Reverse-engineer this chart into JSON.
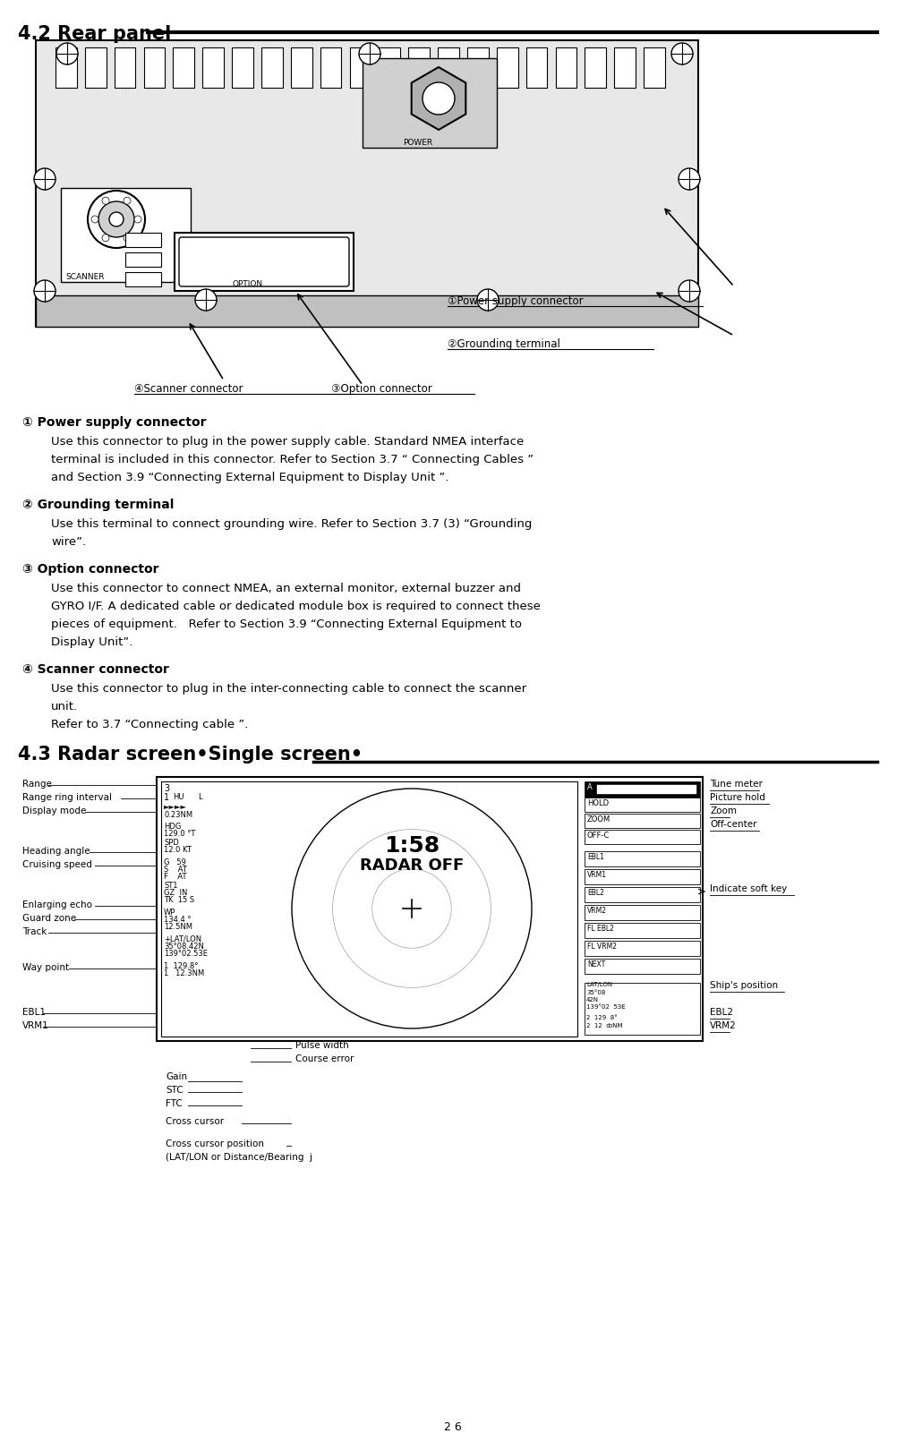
{
  "title1": "4.2 Rear panel",
  "title2": "4.3 Radar screen•Single screen•",
  "section1_items": [
    {
      "symbol": "①",
      "header": "Power supply connector",
      "body": "Use this connector to plug in the power supply cable. Standard NMEA interface\nterminal is included in this connector. Refer to Section 3.7 “ Connecting Cables ”\nand Section 3.9 “Connecting External Equipment to Display Unit ”."
    },
    {
      "symbol": "②",
      "header": "Grounding terminal",
      "body": "Use this terminal to connect grounding wire. Refer to Section 3.7 (3) “Grounding\nwire”."
    },
    {
      "symbol": "③",
      "header": "Option connector",
      "body": "Use this connector to connect NMEA, an external monitor, external buzzer and\nGYRO I/F. A dedicated cable or dedicated module box is required to connect these\npieces of equipment.   Refer to Section 3.9 “Connecting External Equipment to\nDisplay Unit”."
    },
    {
      "symbol": "④",
      "header": "Scanner connector",
      "body": "Use this connector to plug in the inter-connecting cable to connect the scanner\nunit.\nRefer to 3.7 “Connecting cable ”."
    }
  ],
  "bg_color": "#ffffff",
  "text_color": "#000000",
  "page_number": "2 6"
}
